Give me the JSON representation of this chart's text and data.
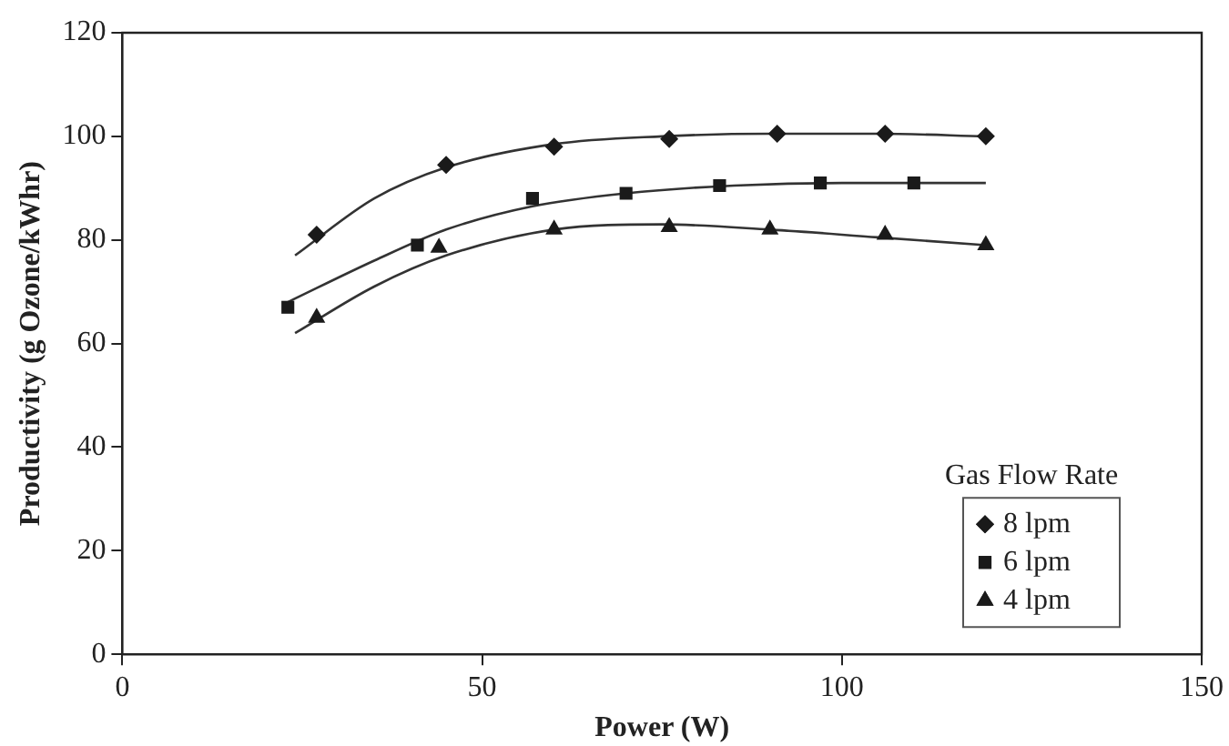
{
  "chart_data": {
    "type": "scatter",
    "xlabel": "Power (W)",
    "ylabel": "Productivity (g Ozone/kWhr)",
    "legend_title": "Gas Flow Rate",
    "legend": "bottom right",
    "grid": false,
    "xlim": [
      0,
      150
    ],
    "xticks": [
      0,
      50,
      100,
      150
    ],
    "ylim": [
      0,
      120
    ],
    "yticks": [
      0,
      20,
      40,
      60,
      80,
      100,
      120
    ],
    "series": [
      {
        "name": "8 lpm",
        "color": "#1a1a1a",
        "marker": "diamond",
        "x": [
          27,
          45,
          60,
          76,
          91,
          106,
          120
        ],
        "values": [
          81,
          94.5,
          98,
          99.5,
          100.5,
          100.5,
          100
        ]
      },
      {
        "name": "6 lpm",
        "color": "#1a1a1a",
        "marker": "square",
        "x": [
          23,
          41,
          57,
          70,
          83,
          97,
          110
        ],
        "values": [
          67,
          79,
          88,
          89,
          90.5,
          91,
          91
        ]
      },
      {
        "name": "4 lpm",
        "color": "#1a1a1a",
        "marker": "triangle",
        "x": [
          27,
          44,
          60,
          76,
          90,
          106,
          120
        ],
        "values": [
          65,
          78.5,
          82,
          82.5,
          82,
          81,
          79
        ]
      },
      {
        "type": "line",
        "color": "#333333",
        "marker": "none",
        "x": [
          24,
          35,
          45,
          60,
          75,
          90,
          105,
          120
        ],
        "values": [
          77,
          88,
          94,
          98.5,
          100,
          100.5,
          100.5,
          100
        ]
      },
      {
        "type": "line",
        "color": "#333333",
        "marker": "none",
        "x": [
          23,
          35,
          45,
          57,
          70,
          85,
          100,
          120
        ],
        "values": [
          68,
          76,
          82,
          86.5,
          89,
          90.5,
          91,
          91
        ]
      },
      {
        "type": "line",
        "color": "#333333",
        "marker": "none",
        "x": [
          24,
          35,
          45,
          60,
          75,
          90,
          105,
          120
        ],
        "values": [
          62,
          71,
          77,
          82,
          83,
          82,
          80.5,
          79
        ]
      }
    ]
  }
}
